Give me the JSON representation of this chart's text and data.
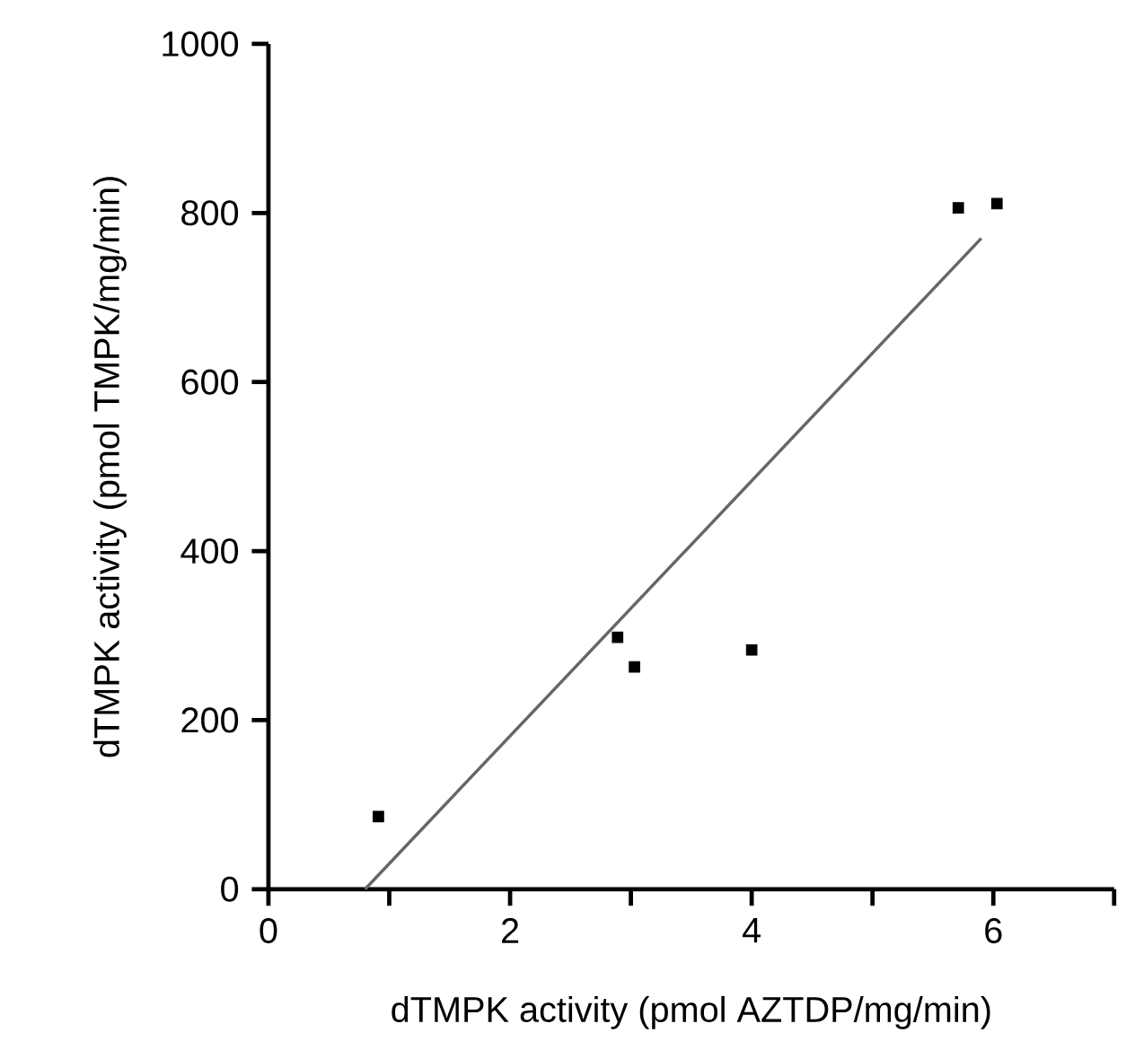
{
  "chart_data": {
    "type": "scatter",
    "xlabel": "dTMPK activity (pmol AZTDP/mg/min)",
    "ylabel": "dTMPK activity (pmol TMPK/mg/min)",
    "xlim": [
      0,
      7
    ],
    "ylim": [
      0,
      1000
    ],
    "xticks": [
      0,
      {
        "value": 1,
        "label": null
      },
      2,
      {
        "value": 3,
        "label": null
      },
      4,
      {
        "value": 5,
        "label": null
      },
      6,
      {
        "value": 7,
        "label": null
      }
    ],
    "yticks": [
      0,
      200,
      400,
      600,
      800,
      1000
    ],
    "grid": false,
    "series": [
      {
        "marker": "square",
        "color": "#000000",
        "x": [
          0.91,
          2.89,
          3.03,
          4.0,
          5.71,
          6.03
        ],
        "values": [
          86,
          298,
          263,
          283,
          806,
          811
        ]
      },
      {
        "type": "line",
        "color": "#666666",
        "line_style": "solid",
        "x": [
          0.8,
          5.9
        ],
        "values": [
          0,
          770
        ]
      }
    ]
  }
}
